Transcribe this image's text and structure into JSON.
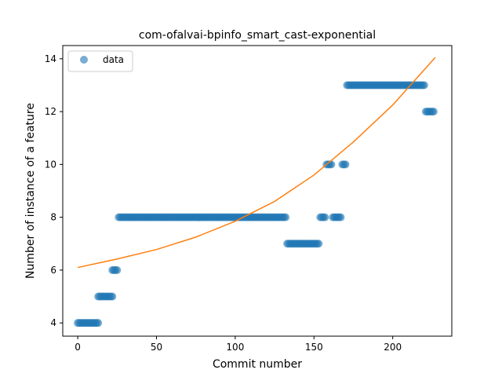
{
  "chart_data": {
    "type": "scatter",
    "title": "com-ofalvai-bpinfo_smart_cast-exponential",
    "xlabel": "Commit number",
    "ylabel": "Number of instance of a feature",
    "xlim": [
      -9.5,
      237.5
    ],
    "ylim": [
      3.5,
      14.5
    ],
    "xticks": [
      0,
      50,
      100,
      150,
      200
    ],
    "yticks": [
      4,
      6,
      8,
      10,
      12,
      14
    ],
    "legend": {
      "placement": "top-left",
      "entries": [
        "data"
      ]
    },
    "colors": {
      "data": "#1f77b4",
      "fit": "#ff7f0e"
    },
    "series": [
      {
        "name": "data",
        "kind": "scatter",
        "segments": [
          {
            "x_start": 0,
            "x_end": 13,
            "y": 4
          },
          {
            "x_start": 13,
            "x_end": 22,
            "y": 5
          },
          {
            "x_start": 22,
            "x_end": 25,
            "y": 6
          },
          {
            "x_start": 26,
            "x_end": 132,
            "y": 8
          },
          {
            "x_start": 133,
            "x_end": 153,
            "y": 7
          },
          {
            "x_start": 154,
            "x_end": 157,
            "y": 8
          },
          {
            "x_start": 158,
            "x_end": 161,
            "y": 10
          },
          {
            "x_start": 162,
            "x_end": 167,
            "y": 8
          },
          {
            "x_start": 168,
            "x_end": 170,
            "y": 10
          },
          {
            "x_start": 171,
            "x_end": 220,
            "y": 13
          },
          {
            "x_start": 221,
            "x_end": 226,
            "y": 12
          }
        ]
      },
      {
        "name": "",
        "kind": "line",
        "x": [
          0,
          25,
          50,
          75,
          100,
          125,
          150,
          175,
          200,
          227
        ],
        "y": [
          6.1,
          6.42,
          6.78,
          7.25,
          7.85,
          8.6,
          9.6,
          10.85,
          12.25,
          14.05
        ]
      }
    ]
  }
}
